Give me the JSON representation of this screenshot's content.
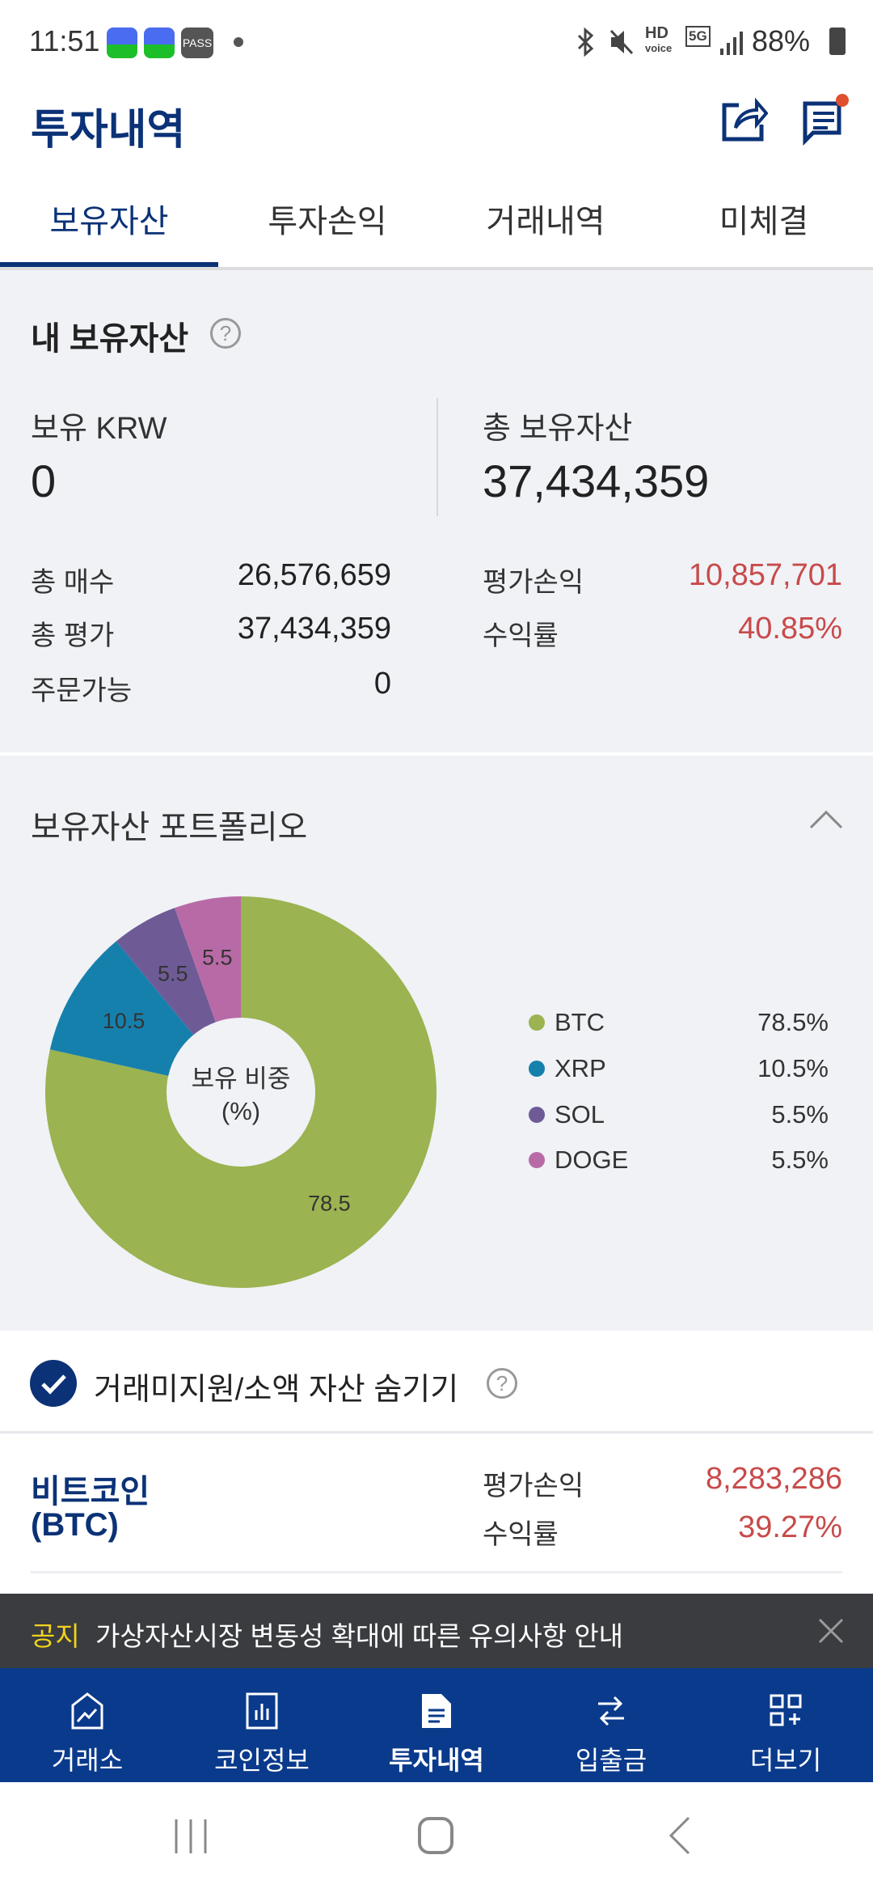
{
  "status_bar": {
    "time": "11:51",
    "battery": "88%",
    "icons": [
      "app-c-icon",
      "app-c-icon",
      "pass-icon",
      "dot-icon",
      "bluetooth-icon",
      "mute-icon",
      "hd-voice-icon",
      "5g-icon",
      "signal-icon",
      "battery-icon"
    ],
    "pass_label": "PASS",
    "hd": "HD",
    "voice": "voice",
    "net": "5G"
  },
  "header": {
    "title": "투자내역",
    "icons": [
      "share-icon",
      "message-icon"
    ]
  },
  "tabs": [
    {
      "label": "보유자산",
      "active": true
    },
    {
      "label": "투자손익"
    },
    {
      "label": "거래내역"
    },
    {
      "label": "미체결"
    }
  ],
  "summary": {
    "title": "내 보유자산",
    "krw_label": "보유 KRW",
    "krw_value": "0",
    "total_label": "총 보유자산",
    "total_value": "37,434,359",
    "rows_left": [
      {
        "label": "총 매수",
        "value": "26,576,659"
      },
      {
        "label": "총 평가",
        "value": "37,434,359"
      },
      {
        "label": "주문가능",
        "value": "0"
      }
    ],
    "rows_right": [
      {
        "label": "평가손익",
        "value": "10,857,701"
      },
      {
        "label": "수익률",
        "value": "40.85%"
      }
    ]
  },
  "portfolio": {
    "title": "보유자산 포트폴리오",
    "center_line1": "보유 비중",
    "center_line2": "(%)"
  },
  "chart_data": {
    "type": "pie",
    "donut": true,
    "categories": [
      "BTC",
      "XRP",
      "SOL",
      "DOGE"
    ],
    "values": [
      78.5,
      10.5,
      5.5,
      5.5
    ],
    "labels": [
      "78.5",
      "10.5",
      "5.5",
      "5.5"
    ],
    "legend": [
      "78.5%",
      "10.5%",
      "5.5%",
      "5.5%"
    ],
    "colors": [
      "#9bb350",
      "#1680ad",
      "#6e5b96",
      "#b86aa6"
    ],
    "legend_placement": "right"
  },
  "hide_small": {
    "label": "거래미지원/소액 자산 숨기기",
    "checked": true
  },
  "holdings": [
    {
      "name": "비트코인",
      "symbol": "(BTC)",
      "pl_label": "평가손익",
      "pl_value": "8,283,286",
      "rate_label": "수익률",
      "rate_value": "39.27%"
    }
  ],
  "notice": {
    "tag": "공지",
    "text": "가상자산시장 변동성 확대에 따른 유의사항 안내"
  },
  "bottom_nav": [
    {
      "label": "거래소",
      "icon": "exchange-chart-icon"
    },
    {
      "label": "코인정보",
      "icon": "bar-chart-icon"
    },
    {
      "label": "투자내역",
      "icon": "document-icon",
      "active": true
    },
    {
      "label": "입출금",
      "icon": "transfer-arrows-icon"
    },
    {
      "label": "더보기",
      "icon": "grid-plus-icon"
    }
  ],
  "colors": {
    "brand": "#0b3277",
    "nav": "#0a3a8c",
    "loss_profit": "#c84a4a",
    "notice_tag": "#f2d21a"
  }
}
